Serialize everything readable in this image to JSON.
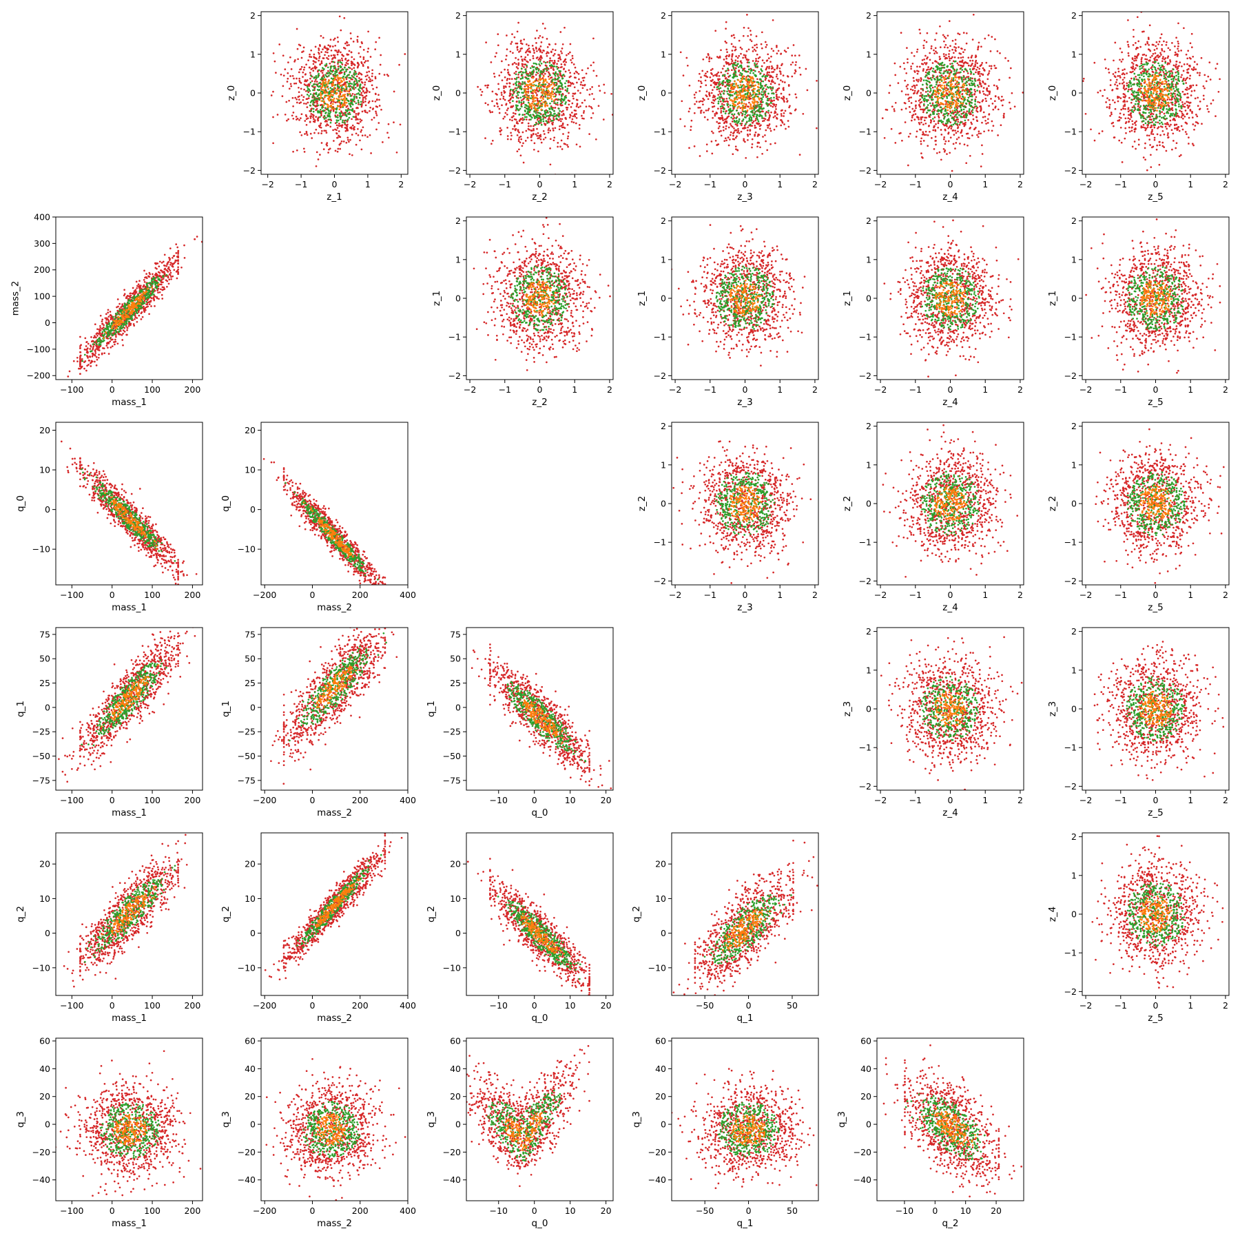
{
  "chart_data": [
    {
      "type": "scatter",
      "xlabel": "z_1",
      "ylabel": "z_0",
      "xticks": [
        "−2",
        "−1",
        "0",
        "1",
        "2"
      ],
      "yticks": [
        "−2",
        "−1",
        "0",
        "1",
        "2"
      ],
      "xlim": [
        -2.2,
        2.2
      ],
      "ylim": [
        -2.1,
        2.1
      ],
      "shape": "blob",
      "sx": 0.62,
      "sy": 0.62,
      "colors": {
        "outer": "#d62728",
        "mid": "#2ca02c",
        "core": "#ff7f0e"
      }
    },
    {
      "type": "scatter",
      "xlabel": "z_2",
      "ylabel": "z_0",
      "xticks": [
        "−2",
        "−1",
        "0",
        "1",
        "2"
      ],
      "yticks": [
        "−2",
        "−1",
        "0",
        "1",
        "2"
      ],
      "xlim": [
        -2.1,
        2.1
      ],
      "ylim": [
        -2.1,
        2.1
      ],
      "shape": "blob",
      "sx": 0.62,
      "sy": 0.62,
      "colors": {
        "outer": "#d62728",
        "mid": "#2ca02c",
        "core": "#ff7f0e"
      }
    },
    {
      "type": "scatter",
      "xlabel": "z_3",
      "ylabel": "z_0",
      "xticks": [
        "−2",
        "−1",
        "0",
        "1",
        "2"
      ],
      "yticks": [
        "−2",
        "−1",
        "0",
        "1",
        "2"
      ],
      "xlim": [
        -2.1,
        2.1
      ],
      "ylim": [
        -2.1,
        2.1
      ],
      "shape": "blob",
      "sx": 0.62,
      "sy": 0.62,
      "colors": {
        "outer": "#d62728",
        "mid": "#2ca02c",
        "core": "#ff7f0e"
      }
    },
    {
      "type": "scatter",
      "xlabel": "z_4",
      "ylabel": "z_0",
      "xticks": [
        "−2",
        "−1",
        "0",
        "1",
        "2"
      ],
      "yticks": [
        "−2",
        "−1",
        "0",
        "1",
        "2"
      ],
      "xlim": [
        -2.1,
        2.1
      ],
      "ylim": [
        -2.1,
        2.1
      ],
      "shape": "blob",
      "sx": 0.62,
      "sy": 0.62,
      "colors": {
        "outer": "#d62728",
        "mid": "#2ca02c",
        "core": "#ff7f0e"
      }
    },
    {
      "type": "scatter",
      "xlabel": "z_5",
      "ylabel": "z_0",
      "xticks": [
        "−2",
        "−1",
        "0",
        "1",
        "2"
      ],
      "yticks": [
        "−2",
        "−1",
        "0",
        "1",
        "2"
      ],
      "xlim": [
        -2.1,
        2.1
      ],
      "ylim": [
        -2.1,
        2.1
      ],
      "shape": "blob",
      "sx": 0.62,
      "sy": 0.62,
      "colors": {
        "outer": "#d62728",
        "mid": "#2ca02c",
        "core": "#ff7f0e"
      }
    },
    {
      "type": "scatter",
      "xlabel": "mass_1",
      "ylabel": "mass_2",
      "xticks": [
        "−100",
        "0",
        "100",
        "200"
      ],
      "yticks": [
        "−200",
        "−100",
        "0",
        "100",
        "200",
        "300",
        "400"
      ],
      "xlim": [
        -140,
        225
      ],
      "ylim": [
        -215,
        400
      ],
      "shape": "linear",
      "xr": [
        -120,
        205
      ],
      "slope": 1.55,
      "intercept": -20,
      "noise": 32,
      "colors": {
        "outer": "#d62728",
        "mid": "#2ca02c",
        "core": "#ff7f0e"
      }
    },
    {
      "type": "scatter",
      "xlabel": "z_2",
      "ylabel": "z_1",
      "xticks": [
        "−2",
        "−1",
        "0",
        "1",
        "2"
      ],
      "yticks": [
        "−2",
        "−1",
        "0",
        "1",
        "2"
      ],
      "xlim": [
        -2.1,
        2.1
      ],
      "ylim": [
        -2.1,
        2.1
      ],
      "shape": "blob",
      "sx": 0.62,
      "sy": 0.62,
      "colors": {
        "outer": "#d62728",
        "mid": "#2ca02c",
        "core": "#ff7f0e"
      }
    },
    {
      "type": "scatter",
      "xlabel": "z_3",
      "ylabel": "z_1",
      "xticks": [
        "−2",
        "−1",
        "0",
        "1",
        "2"
      ],
      "yticks": [
        "−2",
        "−1",
        "0",
        "1",
        "2"
      ],
      "xlim": [
        -2.1,
        2.1
      ],
      "ylim": [
        -2.1,
        2.1
      ],
      "shape": "blob",
      "sx": 0.62,
      "sy": 0.62,
      "colors": {
        "outer": "#d62728",
        "mid": "#2ca02c",
        "core": "#ff7f0e"
      }
    },
    {
      "type": "scatter",
      "xlabel": "z_4",
      "ylabel": "z_1",
      "xticks": [
        "−2",
        "−1",
        "0",
        "1",
        "2"
      ],
      "yticks": [
        "−2",
        "−1",
        "0",
        "1",
        "2"
      ],
      "xlim": [
        -2.1,
        2.1
      ],
      "ylim": [
        -2.1,
        2.1
      ],
      "shape": "blob",
      "sx": 0.62,
      "sy": 0.62,
      "colors": {
        "outer": "#d62728",
        "mid": "#2ca02c",
        "core": "#ff7f0e"
      }
    },
    {
      "type": "scatter",
      "xlabel": "z_5",
      "ylabel": "z_1",
      "xticks": [
        "−2",
        "−1",
        "0",
        "1",
        "2"
      ],
      "yticks": [
        "−2",
        "−1",
        "0",
        "1",
        "2"
      ],
      "xlim": [
        -2.1,
        2.1
      ],
      "ylim": [
        -2.1,
        2.1
      ],
      "shape": "blob",
      "sx": 0.62,
      "sy": 0.62,
      "colors": {
        "outer": "#d62728",
        "mid": "#2ca02c",
        "core": "#ff7f0e"
      }
    },
    {
      "type": "scatter",
      "xlabel": "mass_1",
      "ylabel": "q_0",
      "xticks": [
        "−100",
        "0",
        "100",
        "200"
      ],
      "yticks": [
        "−10",
        "0",
        "10",
        "20"
      ],
      "xlim": [
        -140,
        225
      ],
      "ylim": [
        -19,
        22
      ],
      "shape": "linear",
      "xr": [
        -120,
        205
      ],
      "slope": -0.098,
      "intercept": 2,
      "noise": 2.2,
      "colors": {
        "outer": "#d62728",
        "mid": "#2ca02c",
        "core": "#ff7f0e"
      }
    },
    {
      "type": "scatter",
      "xlabel": "mass_2",
      "ylabel": "q_0",
      "xticks": [
        "−200",
        "0",
        "200",
        "400"
      ],
      "yticks": [
        "−10",
        "0",
        "10",
        "20"
      ],
      "xlim": [
        -215,
        400
      ],
      "ylim": [
        -19,
        22
      ],
      "shape": "linear",
      "xr": [
        -190,
        375
      ],
      "slope": -0.064,
      "intercept": -1,
      "noise": 1.8,
      "colors": {
        "outer": "#d62728",
        "mid": "#2ca02c",
        "core": "#ff7f0e"
      }
    },
    {
      "type": "scatter",
      "xlabel": "z_3",
      "ylabel": "z_2",
      "xticks": [
        "−2",
        "−1",
        "0",
        "1",
        "2"
      ],
      "yticks": [
        "−2",
        "−1",
        "0",
        "1",
        "2"
      ],
      "xlim": [
        -2.1,
        2.1
      ],
      "ylim": [
        -2.1,
        2.1
      ],
      "shape": "blob",
      "sx": 0.62,
      "sy": 0.62,
      "colors": {
        "outer": "#d62728",
        "mid": "#2ca02c",
        "core": "#ff7f0e"
      }
    },
    {
      "type": "scatter",
      "xlabel": "z_4",
      "ylabel": "z_2",
      "xticks": [
        "−2",
        "−1",
        "0",
        "1",
        "2"
      ],
      "yticks": [
        "−2",
        "−1",
        "0",
        "1",
        "2"
      ],
      "xlim": [
        -2.1,
        2.1
      ],
      "ylim": [
        -2.1,
        2.1
      ],
      "shape": "blob",
      "sx": 0.62,
      "sy": 0.62,
      "colors": {
        "outer": "#d62728",
        "mid": "#2ca02c",
        "core": "#ff7f0e"
      }
    },
    {
      "type": "scatter",
      "xlabel": "z_5",
      "ylabel": "z_2",
      "xticks": [
        "−2",
        "−1",
        "0",
        "1",
        "2"
      ],
      "yticks": [
        "−2",
        "−1",
        "0",
        "1",
        "2"
      ],
      "xlim": [
        -2.1,
        2.1
      ],
      "ylim": [
        -2.1,
        2.1
      ],
      "shape": "blob",
      "sx": 0.62,
      "sy": 0.62,
      "colors": {
        "outer": "#d62728",
        "mid": "#2ca02c",
        "core": "#ff7f0e"
      }
    },
    {
      "type": "scatter",
      "xlabel": "mass_1",
      "ylabel": "q_1",
      "xticks": [
        "−100",
        "0",
        "100",
        "200"
      ],
      "yticks": [
        "−75",
        "−50",
        "−25",
        "0",
        "25",
        "50",
        "75"
      ],
      "xlim": [
        -140,
        225
      ],
      "ylim": [
        -85,
        82
      ],
      "shape": "linear",
      "xr": [
        -120,
        205
      ],
      "slope": 0.42,
      "intercept": -8,
      "noise": 14,
      "colors": {
        "outer": "#d62728",
        "mid": "#2ca02c",
        "core": "#ff7f0e"
      }
    },
    {
      "type": "scatter",
      "xlabel": "mass_2",
      "ylabel": "q_1",
      "xticks": [
        "−200",
        "0",
        "200",
        "400"
      ],
      "yticks": [
        "−75",
        "−50",
        "−25",
        "0",
        "25",
        "50",
        "75"
      ],
      "xlim": [
        -215,
        400
      ],
      "ylim": [
        -85,
        82
      ],
      "shape": "linear",
      "xr": [
        -190,
        375
      ],
      "slope": 0.24,
      "intercept": -2,
      "noise": 16,
      "colors": {
        "outer": "#d62728",
        "mid": "#2ca02c",
        "core": "#ff7f0e"
      }
    },
    {
      "type": "scatter",
      "xlabel": "q_0",
      "ylabel": "q_1",
      "xticks": [
        "−10",
        "0",
        "10",
        "20"
      ],
      "yticks": [
        "−75",
        "−50",
        "−25",
        "0",
        "25",
        "50",
        "75"
      ],
      "xlim": [
        -19,
        22
      ],
      "ylim": [
        -85,
        82
      ],
      "shape": "linear",
      "xr": [
        -17,
        20
      ],
      "slope": -3.3,
      "intercept": -5,
      "noise": 13,
      "colors": {
        "outer": "#d62728",
        "mid": "#2ca02c",
        "core": "#ff7f0e"
      }
    },
    {
      "type": "scatter",
      "xlabel": "z_4",
      "ylabel": "z_3",
      "xticks": [
        "−2",
        "−1",
        "0",
        "1",
        "2"
      ],
      "yticks": [
        "−2",
        "−1",
        "0",
        "1",
        "2"
      ],
      "xlim": [
        -2.1,
        2.1
      ],
      "ylim": [
        -2.1,
        2.1
      ],
      "shape": "blob",
      "sx": 0.62,
      "sy": 0.62,
      "colors": {
        "outer": "#d62728",
        "mid": "#2ca02c",
        "core": "#ff7f0e"
      }
    },
    {
      "type": "scatter",
      "xlabel": "z_5",
      "ylabel": "z_3",
      "xticks": [
        "−2",
        "−1",
        "0",
        "1",
        "2"
      ],
      "yticks": [
        "−2",
        "−1",
        "0",
        "1",
        "2"
      ],
      "xlim": [
        -2.1,
        2.1
      ],
      "ylim": [
        -2.1,
        2.1
      ],
      "shape": "blob",
      "sx": 0.62,
      "sy": 0.62,
      "colors": {
        "outer": "#d62728",
        "mid": "#2ca02c",
        "core": "#ff7f0e"
      }
    },
    {
      "type": "scatter",
      "xlabel": "mass_1",
      "ylabel": "q_2",
      "xticks": [
        "−100",
        "0",
        "100",
        "200"
      ],
      "yticks": [
        "−10",
        "0",
        "10",
        "20"
      ],
      "xlim": [
        -140,
        225
      ],
      "ylim": [
        -18,
        29
      ],
      "shape": "linear",
      "xr": [
        -120,
        205
      ],
      "slope": 0.11,
      "intercept": 1,
      "noise": 4,
      "colors": {
        "outer": "#d62728",
        "mid": "#2ca02c",
        "core": "#ff7f0e"
      }
    },
    {
      "type": "scatter",
      "xlabel": "mass_2",
      "ylabel": "q_2",
      "xticks": [
        "−200",
        "0",
        "200",
        "400"
      ],
      "yticks": [
        "−10",
        "0",
        "10",
        "20"
      ],
      "xlim": [
        -215,
        400
      ],
      "ylim": [
        -18,
        29
      ],
      "shape": "linear",
      "xr": [
        -190,
        375
      ],
      "slope": 0.075,
      "intercept": 1,
      "noise": 2.2,
      "colors": {
        "outer": "#d62728",
        "mid": "#2ca02c",
        "core": "#ff7f0e"
      }
    },
    {
      "type": "scatter",
      "xlabel": "q_0",
      "ylabel": "q_2",
      "xticks": [
        "−10",
        "0",
        "10",
        "20"
      ],
      "yticks": [
        "−10",
        "0",
        "10",
        "20"
      ],
      "xlim": [
        -19,
        22
      ],
      "ylim": [
        -18,
        29
      ],
      "shape": "linear",
      "xr": [
        -17,
        20
      ],
      "slope": -0.95,
      "intercept": 1,
      "noise": 3.2,
      "colors": {
        "outer": "#d62728",
        "mid": "#2ca02c",
        "core": "#ff7f0e"
      }
    },
    {
      "type": "scatter",
      "xlabel": "q_1",
      "ylabel": "q_2",
      "xticks": [
        "−50",
        "0",
        "50"
      ],
      "yticks": [
        "−10",
        "0",
        "10",
        "20"
      ],
      "xlim": [
        -88,
        80
      ],
      "ylim": [
        -18,
        29
      ],
      "shape": "linear",
      "xr": [
        -80,
        70
      ],
      "slope": 0.2,
      "intercept": 2,
      "noise": 5,
      "colors": {
        "outer": "#d62728",
        "mid": "#2ca02c",
        "core": "#ff7f0e"
      }
    },
    {
      "type": "scatter",
      "xlabel": "z_5",
      "ylabel": "z_4",
      "xticks": [
        "−2",
        "−1",
        "0",
        "1",
        "2"
      ],
      "yticks": [
        "−2",
        "−1",
        "0",
        "1",
        "2"
      ],
      "xlim": [
        -2.1,
        2.1
      ],
      "ylim": [
        -2.1,
        2.1
      ],
      "shape": "blob",
      "sx": 0.62,
      "sy": 0.62,
      "colors": {
        "outer": "#d62728",
        "mid": "#2ca02c",
        "core": "#ff7f0e"
      }
    },
    {
      "type": "scatter",
      "xlabel": "mass_1",
      "ylabel": "q_3",
      "xticks": [
        "−100",
        "0",
        "100",
        "200"
      ],
      "yticks": [
        "−40",
        "−20",
        "0",
        "20",
        "40",
        "60"
      ],
      "xlim": [
        -140,
        225
      ],
      "ylim": [
        -55,
        62
      ],
      "shape": "blob",
      "cx": 45,
      "cy": -4,
      "sx": 55,
      "sy": 15,
      "colors": {
        "outer": "#d62728",
        "mid": "#2ca02c",
        "core": "#ff7f0e"
      }
    },
    {
      "type": "scatter",
      "xlabel": "mass_2",
      "ylabel": "q_3",
      "xticks": [
        "−200",
        "0",
        "200",
        "400"
      ],
      "yticks": [
        "−40",
        "−20",
        "0",
        "20",
        "40",
        "60"
      ],
      "xlim": [
        -215,
        400
      ],
      "ylim": [
        -55,
        62
      ],
      "shape": "blob",
      "cx": 80,
      "cy": -4,
      "sx": 90,
      "sy": 15,
      "colors": {
        "outer": "#d62728",
        "mid": "#2ca02c",
        "core": "#ff7f0e"
      }
    },
    {
      "type": "scatter",
      "xlabel": "q_0",
      "ylabel": "q_3",
      "xticks": [
        "−10",
        "0",
        "10",
        "20"
      ],
      "yticks": [
        "−40",
        "−20",
        "0",
        "20",
        "40",
        "60"
      ],
      "xlim": [
        -19,
        22
      ],
      "ylim": [
        -55,
        62
      ],
      "shape": "vee",
      "xr": [
        -17,
        21
      ],
      "vertex": [
        -3,
        -10
      ],
      "left": -1.9,
      "right": 3.0,
      "noise": 13,
      "colors": {
        "outer": "#d62728",
        "mid": "#2ca02c",
        "core": "#ff7f0e"
      }
    },
    {
      "type": "scatter",
      "xlabel": "q_1",
      "ylabel": "q_3",
      "xticks": [
        "−50",
        "0",
        "50"
      ],
      "yticks": [
        "−40",
        "−20",
        "0",
        "20",
        "40",
        "60"
      ],
      "xlim": [
        -88,
        80
      ],
      "ylim": [
        -55,
        62
      ],
      "shape": "blob",
      "cx": 0,
      "cy": -4,
      "sx": 26,
      "sy": 15,
      "colors": {
        "outer": "#d62728",
        "mid": "#2ca02c",
        "core": "#ff7f0e"
      }
    },
    {
      "type": "scatter",
      "xlabel": "q_2",
      "ylabel": "q_3",
      "xticks": [
        "−10",
        "0",
        "10",
        "20"
      ],
      "yticks": [
        "−40",
        "−20",
        "0",
        "20",
        "40",
        "60"
      ],
      "xlim": [
        -19,
        29
      ],
      "ylim": [
        -55,
        62
      ],
      "shape": "linear",
      "xr": [
        -15,
        26
      ],
      "slope": -1.3,
      "intercept": 5,
      "noise": 14,
      "colors": {
        "outer": "#d62728",
        "mid": "#2ca02c",
        "core": "#ff7f0e"
      }
    }
  ]
}
